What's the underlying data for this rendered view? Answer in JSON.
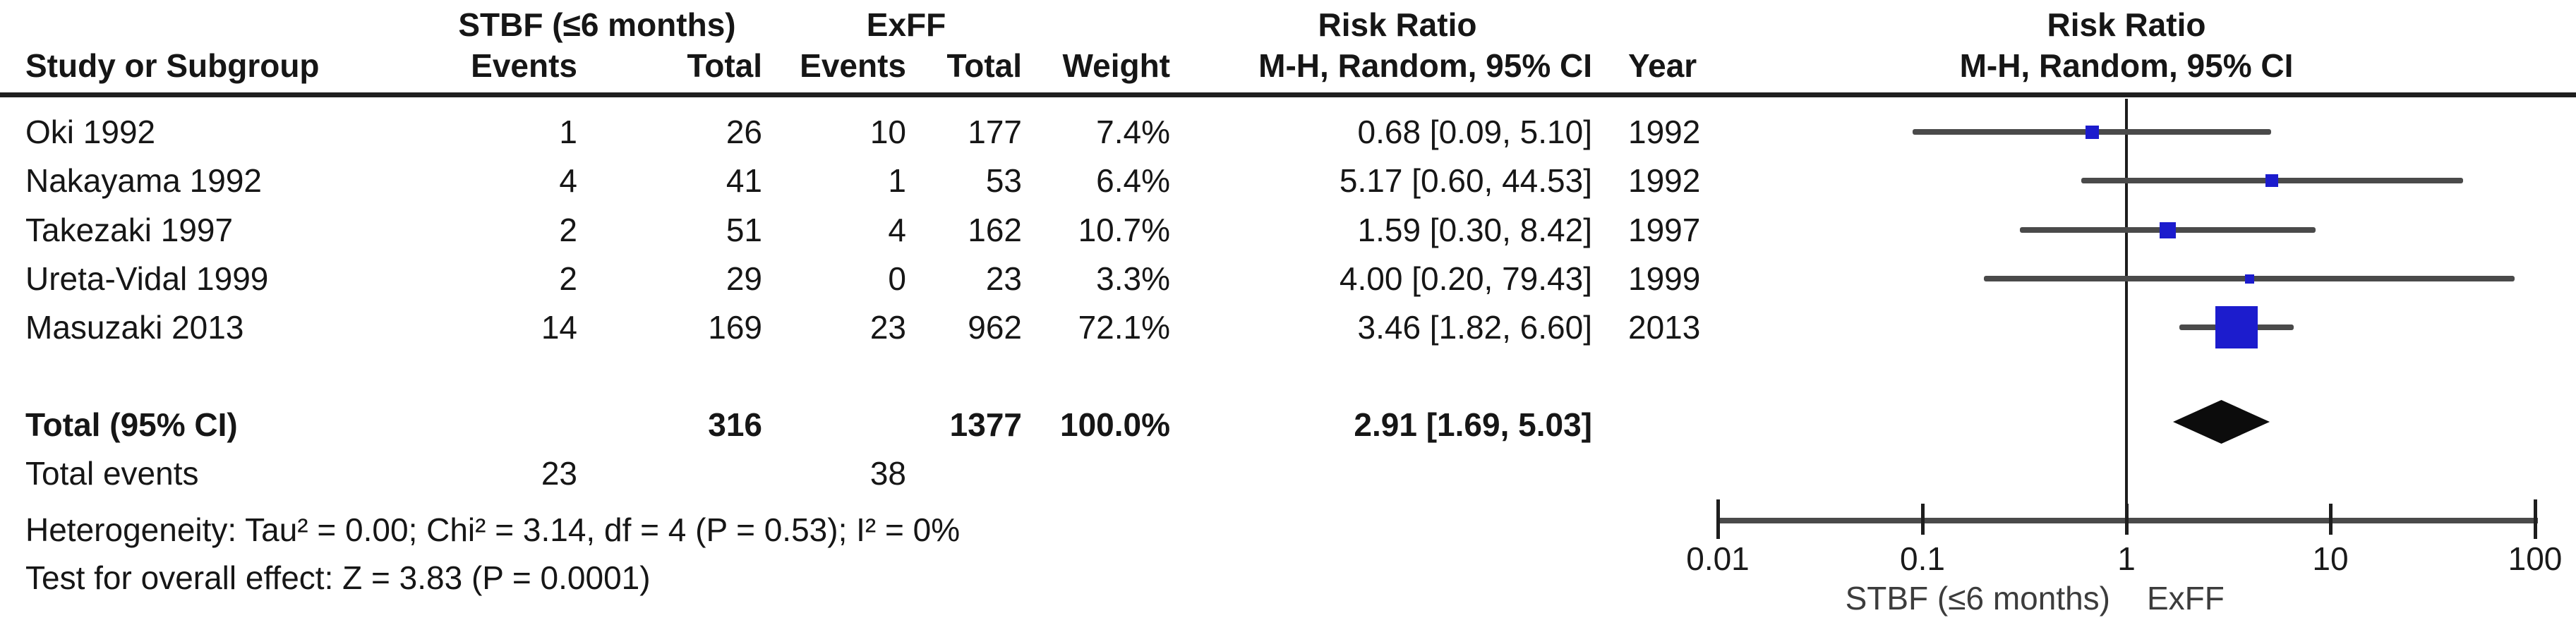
{
  "table": {
    "group_headers": {
      "experimental": "STBF (≤6 months)",
      "control": "ExFF",
      "effect": "Risk Ratio",
      "plot": "Risk Ratio"
    },
    "columns": {
      "study": "Study or Subgroup",
      "events1": "Events",
      "total1": "Total",
      "events2": "Events",
      "total2": "Total",
      "weight": "Weight",
      "effect_ci": "M-H, Random, 95% CI",
      "year": "Year",
      "plot_sub": "M-H, Random, 95% CI"
    },
    "rows": [
      {
        "study": "Oki 1992",
        "events1": "1",
        "total1": "26",
        "events2": "10",
        "total2": "177",
        "weight": "7.4%",
        "rr_text": "0.68 [0.09, 5.10]",
        "year": "1992"
      },
      {
        "study": "Nakayama 1992",
        "events1": "4",
        "total1": "41",
        "events2": "1",
        "total2": "53",
        "weight": "6.4%",
        "rr_text": "5.17 [0.60, 44.53]",
        "year": "1992"
      },
      {
        "study": "Takezaki 1997",
        "events1": "2",
        "total1": "51",
        "events2": "4",
        "total2": "162",
        "weight": "10.7%",
        "rr_text": "1.59 [0.30, 8.42]",
        "year": "1997"
      },
      {
        "study": "Ureta-Vidal 1999",
        "events1": "2",
        "total1": "29",
        "events2": "0",
        "total2": "23",
        "weight": "3.3%",
        "rr_text": "4.00 [0.20, 79.43]",
        "year": "1999"
      },
      {
        "study": "Masuzaki 2013",
        "events1": "14",
        "total1": "169",
        "events2": "23",
        "total2": "962",
        "weight": "72.1%",
        "rr_text": "3.46 [1.82, 6.60]",
        "year": "2013"
      }
    ],
    "total_row": {
      "label": "Total (95% CI)",
      "total1": "316",
      "total2": "1377",
      "weight": "100.0%",
      "rr_text": "2.91 [1.69, 5.03]"
    },
    "total_events": {
      "label": "Total events",
      "events1": "23",
      "events2": "38"
    },
    "heterogeneity": "Heterogeneity: Tau² = 0.00; Chi² = 3.14, df = 4 (P = 0.53); I² = 0%",
    "overall_effect": "Test for overall effect: Z = 3.83 (P = 0.0001)"
  },
  "chart_data": {
    "type": "forest",
    "x_scale": "log10",
    "xlim": [
      0.01,
      100
    ],
    "null_line": 1,
    "axis_ticks": [
      "0.01",
      "0.1",
      "1",
      "10",
      "100"
    ],
    "favours_left": "STBF (≤6 months)",
    "favours_right": "ExFF",
    "studies": [
      {
        "name": "Oki 1992",
        "rr": 0.68,
        "ci_low": 0.09,
        "ci_high": 5.1,
        "weight_pct": 7.4
      },
      {
        "name": "Nakayama 1992",
        "rr": 5.17,
        "ci_low": 0.6,
        "ci_high": 44.53,
        "weight_pct": 6.4
      },
      {
        "name": "Takezaki 1997",
        "rr": 1.59,
        "ci_low": 0.3,
        "ci_high": 8.42,
        "weight_pct": 10.7
      },
      {
        "name": "Ureta-Vidal 1999",
        "rr": 4.0,
        "ci_low": 0.2,
        "ci_high": 79.43,
        "weight_pct": 3.3
      },
      {
        "name": "Masuzaki 2013",
        "rr": 3.46,
        "ci_low": 1.82,
        "ci_high": 6.6,
        "weight_pct": 72.1
      }
    ],
    "total": {
      "rr": 2.91,
      "ci_low": 1.69,
      "ci_high": 5.03
    }
  },
  "colors": {
    "marker_blue": "#1c1ccd",
    "ci_line": "#4a4a4a",
    "diamond": "#0c0c0c",
    "rule": "#1f1f1f",
    "axis": "#4a4a4a",
    "favours_label": "#3c3c3c"
  }
}
